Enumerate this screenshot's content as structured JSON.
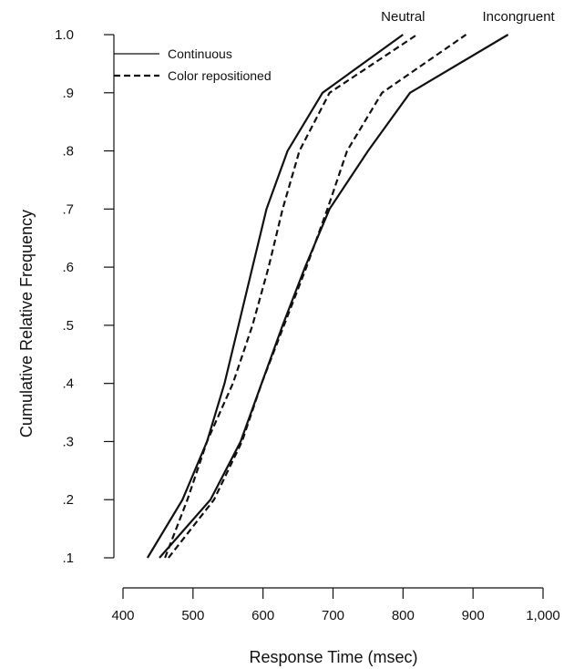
{
  "chart_data": {
    "type": "line",
    "title": "",
    "xlabel": "Response Time (msec)",
    "ylabel": "Cumulative Relative Frequency",
    "xlim": [
      400,
      1000
    ],
    "ylim": [
      0.1,
      1.0
    ],
    "x_ticks": [
      400,
      500,
      600,
      700,
      800,
      900,
      1000
    ],
    "x_tick_labels": [
      "400",
      "500",
      "600",
      "700",
      "800",
      "900",
      "1,000"
    ],
    "y_ticks": [
      0.1,
      0.2,
      0.3,
      0.4,
      0.5,
      0.6,
      0.7,
      0.8,
      0.9,
      1.0
    ],
    "y_tick_labels": [
      ".1",
      ".2",
      ".3",
      ".4",
      ".5",
      ".6",
      ".7",
      ".8",
      ".9",
      "1.0"
    ],
    "grid": false,
    "legend": {
      "placement": "top-left",
      "entries": [
        {
          "label": "Continuous",
          "style": "solid"
        },
        {
          "label": "Color repositioned",
          "style": "dashed"
        }
      ]
    },
    "annotations": [
      {
        "text": "Neutral",
        "x": 800,
        "y": 1.0
      },
      {
        "text": "Incongruent",
        "x": 965,
        "y": 1.0
      }
    ],
    "series": [
      {
        "condition": "Neutral",
        "style": "solid",
        "y": [
          0.1,
          0.2,
          0.3,
          0.4,
          0.5,
          0.6,
          0.7,
          0.8,
          0.9,
          1.0
        ],
        "x": [
          435,
          485,
          520,
          545,
          565,
          585,
          605,
          635,
          685,
          800
        ]
      },
      {
        "condition": "Neutral",
        "style": "dashed",
        "y": [
          0.1,
          0.2,
          0.3,
          0.4,
          0.5,
          0.6,
          0.7,
          0.8,
          0.9,
          1.0
        ],
        "x": [
          460,
          492,
          520,
          557,
          585,
          608,
          628,
          652,
          695,
          820
        ]
      },
      {
        "condition": "Incongruent",
        "style": "solid",
        "y": [
          0.1,
          0.2,
          0.3,
          0.4,
          0.5,
          0.6,
          0.7,
          0.8,
          0.9,
          1.0
        ],
        "x": [
          452,
          525,
          568,
          598,
          628,
          660,
          695,
          750,
          810,
          950
        ]
      },
      {
        "condition": "Incongruent",
        "style": "dashed",
        "y": [
          0.1,
          0.2,
          0.3,
          0.4,
          0.5,
          0.6,
          0.7,
          0.8,
          0.9,
          1.0
        ],
        "x": [
          465,
          530,
          570,
          598,
          630,
          662,
          692,
          720,
          770,
          890
        ]
      }
    ]
  }
}
